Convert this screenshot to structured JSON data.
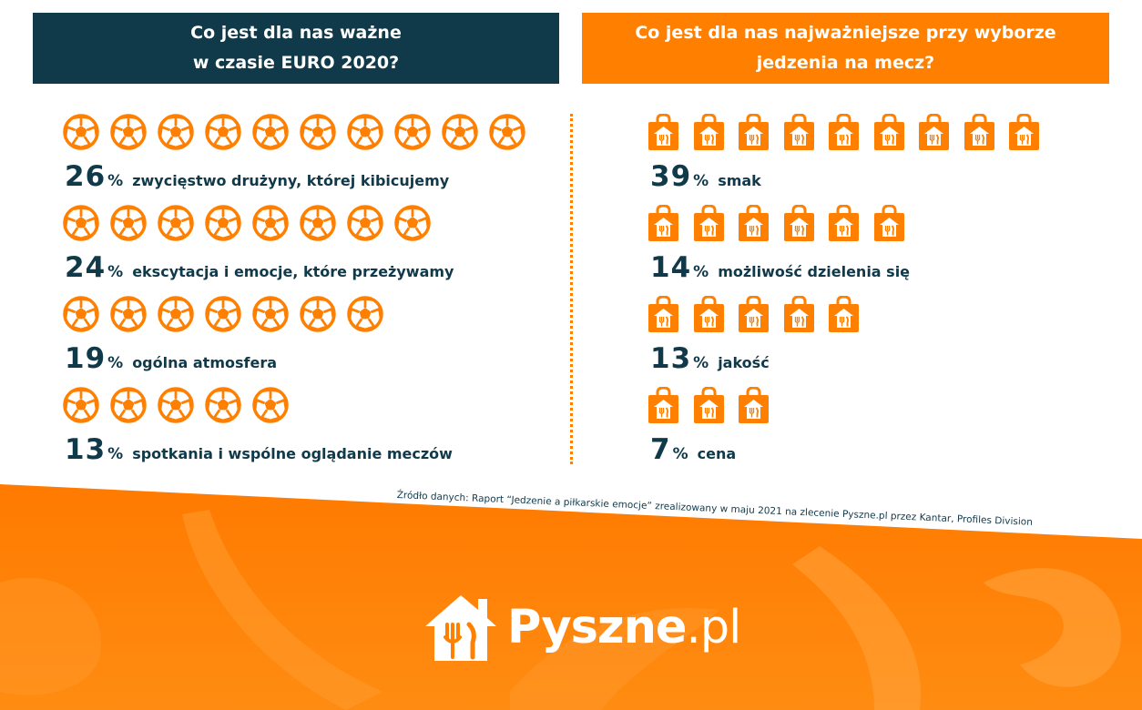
{
  "left_panel": {
    "title_line1": "Co jest dla nas ważne",
    "title_line2": "w czasie EURO 2020?"
  },
  "right_panel": {
    "title_line1": "Co jest dla nas najważniejsze przy wyborze",
    "title_line2": "jedzenia na mecz?"
  },
  "chart_data": [
    {
      "type": "pictogram",
      "title": "Co jest dla nas ważne w czasie EURO 2020?",
      "icon": "football-icon",
      "categories": [
        "zwycięstwo drużyny, której kibicujemy",
        "ekscytacja i emocje, które przeżywamy",
        "ogólna atmosfera",
        "spotkania i wspólne oglądanie meczów"
      ],
      "values": [
        26,
        24,
        19,
        13
      ],
      "value_labels": [
        "26",
        "24",
        "19",
        "13"
      ],
      "icon_counts": [
        10,
        8,
        7,
        5
      ],
      "unit": "%"
    },
    {
      "type": "pictogram",
      "title": "Co jest dla nas najważniejsze przy wyborze jedzenia na mecz?",
      "icon": "food-bag-icon",
      "categories": [
        "smak",
        "możliwość dzielenia się",
        "jakość",
        "cena"
      ],
      "values": [
        39,
        14,
        13,
        7
      ],
      "value_labels": [
        "39",
        "14",
        "13",
        "7"
      ],
      "icon_counts": [
        9,
        6,
        5,
        3
      ],
      "unit": "%"
    }
  ],
  "footer": {
    "source": "Źródło danych: Raport “Jedzenie a piłkarskie emocje” zrealizowany w maju 2021 na zlecenie Pyszne.pl przez Kantar, Profiles Division",
    "logo_name": "Pyszne",
    "logo_tld": ".pl"
  },
  "colors": {
    "navy": "#10394a",
    "orange": "#ff8000",
    "white": "#ffffff"
  }
}
